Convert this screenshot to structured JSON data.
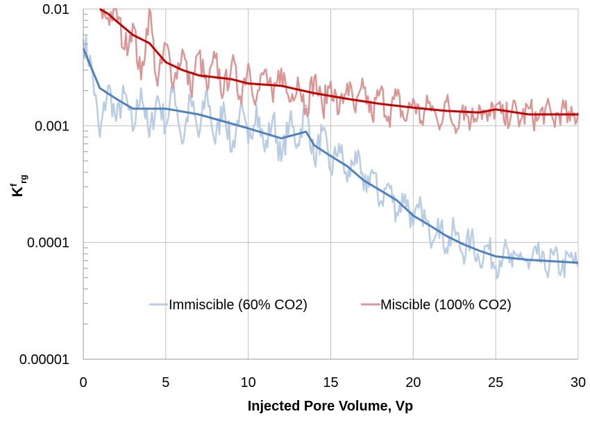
{
  "chart_data": {
    "type": "line",
    "title": "",
    "xlabel": "Injected Pore Volume, Vp",
    "ylabel": {
      "main": "K",
      "sup": "f",
      "sub": "rg"
    },
    "xlim": [
      0,
      30
    ],
    "ylim": [
      1e-05,
      0.01
    ],
    "yscale": "log",
    "grid": true,
    "legend_position": "inside-bottom-center",
    "x_ticks": [
      "0",
      "5",
      "10",
      "15",
      "20",
      "25",
      "30"
    ],
    "y_ticks": [
      "0.00001",
      "0.0001",
      "0.001",
      "0.01"
    ],
    "legend": [
      {
        "label": "Immiscible (60% CO2)",
        "color": "#b8cce4"
      },
      {
        "label": "Miscible (100% CO2)",
        "color": "#d99694"
      }
    ],
    "series": [
      {
        "name": "Immiscible (60% CO2)",
        "kind": "raw",
        "color": "#b8cce4",
        "x": [
          0,
          0.5,
          1,
          1.5,
          2,
          2.5,
          3,
          3.5,
          4,
          4.5,
          5,
          5.5,
          6,
          6.5,
          7,
          7.5,
          8,
          8.5,
          9,
          9.5,
          10,
          10.5,
          11,
          11.5,
          12,
          12.5,
          13,
          13.5,
          14,
          14.5,
          15,
          15.5,
          16,
          16.5,
          17,
          17.5,
          18,
          18.5,
          19,
          19.5,
          20,
          20.5,
          21,
          21.5,
          22,
          22.5,
          23,
          23.5,
          24,
          24.5,
          25,
          25.5,
          26,
          26.5,
          27,
          27.5,
          28,
          28.5,
          29,
          29.5,
          30
        ],
        "y": [
          0.0055,
          0.0032,
          0.0008,
          0.0022,
          0.0011,
          0.0019,
          0.0009,
          0.0021,
          0.0008,
          0.0018,
          0.001,
          0.0022,
          0.0007,
          0.0017,
          0.0008,
          0.002,
          0.0007,
          0.0016,
          0.0006,
          0.0014,
          0.0007,
          0.0015,
          0.0006,
          0.0012,
          0.0005,
          0.0011,
          0.0007,
          0.0015,
          0.0005,
          0.0009,
          0.0004,
          0.0007,
          0.00033,
          0.0006,
          0.00028,
          0.00042,
          0.00022,
          0.00032,
          0.00018,
          0.00026,
          0.00014,
          0.0002,
          0.00011,
          0.00016,
          9e-05,
          0.00013,
          8e-05,
          0.00011,
          7e-05,
          9.5e-05,
          6.2e-05,
          8.8e-05,
          6.2e-05,
          8.2e-05,
          6e-05,
          8e-05,
          5.8e-05,
          7.8e-05,
          5.8e-05,
          7.5e-05,
          6.2e-05
        ]
      },
      {
        "name": "Miscible (100% CO2)",
        "kind": "raw",
        "color": "#d99694",
        "x": [
          1,
          1.5,
          2,
          2.5,
          3,
          3.5,
          4,
          4.5,
          5,
          5.5,
          6,
          6.5,
          7,
          7.5,
          8,
          8.5,
          9,
          9.5,
          10,
          10.5,
          11,
          11.5,
          12,
          12.5,
          13,
          13.5,
          14,
          14.5,
          15,
          15.5,
          16,
          16.5,
          17,
          17.5,
          18,
          18.5,
          19,
          19.5,
          20,
          20.5,
          21,
          21.5,
          22,
          22.5,
          23,
          23.5,
          24,
          24.5,
          25,
          25.5,
          26,
          26.5,
          27,
          27.5,
          28,
          28.5,
          29,
          29.5,
          30
        ],
        "y": [
          0.01,
          0.0085,
          0.01,
          0.0045,
          0.0075,
          0.0025,
          0.01,
          0.0022,
          0.005,
          0.0024,
          0.0045,
          0.002,
          0.0042,
          0.002,
          0.0038,
          0.0019,
          0.0035,
          0.0018,
          0.0034,
          0.0017,
          0.003,
          0.0016,
          0.0031,
          0.0016,
          0.0026,
          0.0014,
          0.0026,
          0.0014,
          0.0024,
          0.0013,
          0.0023,
          0.0013,
          0.0021,
          0.0012,
          0.002,
          0.0012,
          0.0018,
          0.0011,
          0.0017,
          0.0011,
          0.0016,
          0.00105,
          0.0016,
          0.001,
          0.0015,
          0.0011,
          0.0015,
          0.0011,
          0.0015,
          0.0011,
          0.0014,
          0.0011,
          0.0014,
          0.0011,
          0.0014,
          0.0011,
          0.0014,
          0.0011,
          0.0013
        ]
      },
      {
        "kind": "smoothed",
        "color": "#4f81bd",
        "x": [
          0,
          1,
          2,
          3,
          5,
          7,
          10,
          12,
          13.5,
          14,
          15,
          16,
          17,
          18,
          19,
          20,
          21,
          22,
          23,
          24,
          25,
          27,
          30
        ],
        "y": [
          0.0046,
          0.0021,
          0.0017,
          0.0014,
          0.0014,
          0.00125,
          0.00095,
          0.00078,
          0.00089,
          0.00068,
          0.00055,
          0.00045,
          0.00034,
          0.00028,
          0.00023,
          0.00017,
          0.00014,
          0.000114,
          9.7e-05,
          8.5e-05,
          7.6e-05,
          7.1e-05,
          6.7e-05
        ]
      },
      {
        "kind": "smoothed",
        "color": "#c00000",
        "x": [
          1,
          1.5,
          2,
          3,
          4,
          5,
          6,
          7,
          8,
          9,
          10,
          12,
          14,
          16,
          18,
          20,
          22,
          24,
          25,
          27,
          30
        ],
        "y": [
          0.01,
          0.0091,
          0.0079,
          0.006,
          0.0051,
          0.0035,
          0.003,
          0.0027,
          0.0026,
          0.0025,
          0.0023,
          0.0022,
          0.0019,
          0.0017,
          0.00154,
          0.00143,
          0.00134,
          0.0013,
          0.00138,
          0.00125,
          0.00125
        ]
      }
    ]
  }
}
